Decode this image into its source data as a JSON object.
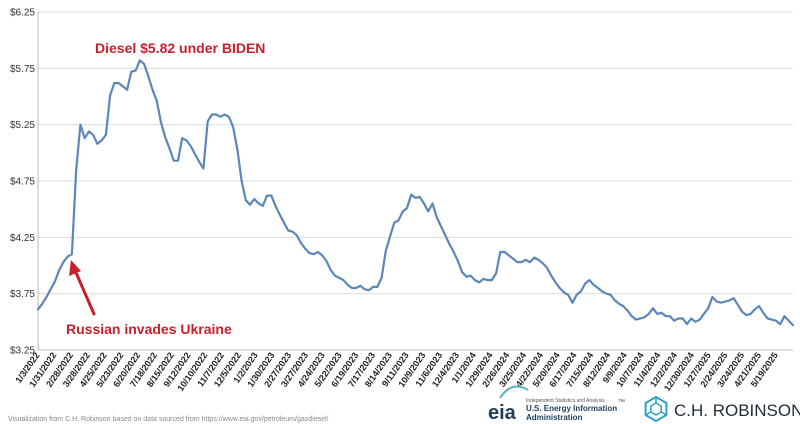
{
  "chart_data": {
    "type": "line",
    "ylim": [
      3.25,
      6.25
    ],
    "yticks": [
      "$3.25",
      "$3.75",
      "$4.25",
      "$4.75",
      "$5.25",
      "$5.75",
      "$6.25"
    ],
    "ytick_values": [
      3.25,
      3.75,
      4.25,
      4.75,
      5.25,
      5.75,
      6.25
    ],
    "xtick_labels": [
      "1/3/2022",
      "1/31/2022",
      "2/28/2022",
      "3/28/2022",
      "4/25/2022",
      "5/23/2022",
      "6/20/2022",
      "7/18/2022",
      "8/15/2022",
      "9/12/2022",
      "10/10/2022",
      "11/7/2022",
      "12/5/2022",
      "1/2/2023",
      "1/30/2023",
      "2/27/2023",
      "3/27/2023",
      "4/24/2023",
      "5/22/2023",
      "6/19/2023",
      "7/17/2023",
      "8/14/2023",
      "9/11/2023",
      "10/9/2023",
      "11/6/2023",
      "12/4/2023",
      "1/1/2024",
      "1/29/2024",
      "2/26/2024",
      "3/25/2024",
      "4/22/2024",
      "5/20/2024",
      "6/17/2024",
      "7/15/2024",
      "8/12/2024",
      "9/9/2024",
      "10/7/2024",
      "11/4/2024",
      "12/2/2024",
      "12/30/2024",
      "1/27/2025",
      "2/24/2025",
      "3/24/2025",
      "4/21/2025",
      "5/19/2025"
    ],
    "grid": true,
    "series": [
      {
        "color": "#5b86b8",
        "values": [
          3.61,
          3.66,
          3.72,
          3.79,
          3.86,
          3.96,
          4.03,
          4.08,
          4.1,
          4.85,
          5.25,
          5.13,
          5.19,
          5.16,
          5.08,
          5.11,
          5.16,
          5.51,
          5.62,
          5.62,
          5.59,
          5.56,
          5.72,
          5.73,
          5.82,
          5.79,
          5.68,
          5.56,
          5.46,
          5.27,
          5.14,
          5.04,
          4.93,
          4.93,
          5.13,
          5.11,
          5.06,
          4.99,
          4.92,
          4.86,
          5.28,
          5.34,
          5.34,
          5.32,
          5.34,
          5.32,
          5.23,
          5.03,
          4.75,
          4.58,
          4.54,
          4.59,
          4.55,
          4.53,
          4.62,
          4.62,
          4.53,
          4.45,
          4.38,
          4.31,
          4.3,
          4.27,
          4.2,
          4.15,
          4.11,
          4.1,
          4.12,
          4.09,
          4.04,
          3.96,
          3.91,
          3.89,
          3.87,
          3.83,
          3.8,
          3.8,
          3.82,
          3.79,
          3.78,
          3.81,
          3.81,
          3.89,
          4.13,
          4.26,
          4.38,
          4.4,
          4.48,
          4.51,
          4.63,
          4.6,
          4.61,
          4.55,
          4.48,
          4.55,
          4.43,
          4.35,
          4.27,
          4.19,
          4.12,
          4.04,
          3.94,
          3.9,
          3.91,
          3.87,
          3.85,
          3.88,
          3.87,
          3.87,
          3.93,
          4.12,
          4.12,
          4.09,
          4.06,
          4.03,
          4.03,
          4.05,
          4.03,
          4.07,
          4.05,
          4.02,
          3.98,
          3.91,
          3.85,
          3.8,
          3.76,
          3.74,
          3.67,
          3.74,
          3.77,
          3.84,
          3.87,
          3.83,
          3.8,
          3.77,
          3.75,
          3.74,
          3.69,
          3.66,
          3.64,
          3.6,
          3.55,
          3.52,
          3.53,
          3.54,
          3.57,
          3.62,
          3.57,
          3.58,
          3.55,
          3.55,
          3.51,
          3.53,
          3.53,
          3.48,
          3.53,
          3.5,
          3.52,
          3.57,
          3.62,
          3.72,
          3.68,
          3.67,
          3.68,
          3.69,
          3.71,
          3.65,
          3.59,
          3.56,
          3.57,
          3.61,
          3.64,
          3.58,
          3.53,
          3.52,
          3.51,
          3.48,
          3.55,
          3.51,
          3.47
        ]
      }
    ]
  },
  "annotations": {
    "peak": "Diesel $5.82  under BIDEN",
    "invasion": "Russian invades Ukraine"
  },
  "footer": {
    "source_note": "Visualization from C.H. Robinson based on data sourced from https://www.eia.gov/petroleum/gasdiesel/",
    "eia_logo": "eia",
    "eia_small": "Independent Statistics and Analysis",
    "eia_line1": "U.S. Energy Information",
    "eia_line2": "Administration",
    "eia_tm": "™",
    "chr_logo": "C.H. ROBINSON"
  },
  "colors": {
    "line": "#5b86b8",
    "annotation": "#c8202b",
    "grid": "#dcdcdc"
  }
}
